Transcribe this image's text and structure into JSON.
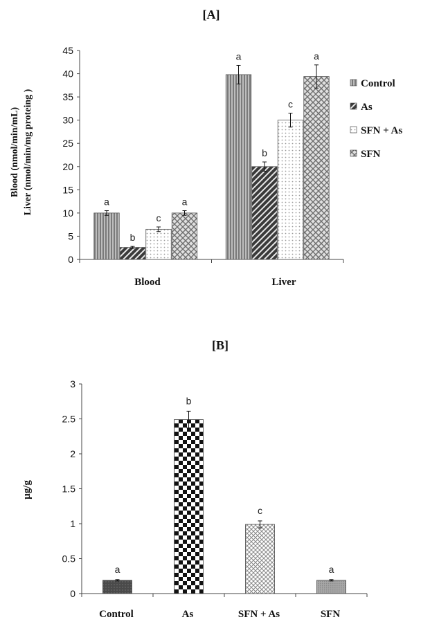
{
  "chart_data": [
    {
      "type": "bar",
      "title": "[A]",
      "ylabel_lines": [
        "Blood (nmol/min/mL)",
        "Liver (nmol/min/mg proteing )"
      ],
      "ylim": [
        0,
        45
      ],
      "yticks": [
        0,
        5,
        10,
        15,
        20,
        25,
        30,
        35,
        40,
        45
      ],
      "categories": [
        "Blood",
        "Liver"
      ],
      "legend_position": "right",
      "series": [
        {
          "name": "Control",
          "values": [
            10,
            39.8
          ],
          "errors": [
            0.5,
            2
          ],
          "letters": [
            "a",
            "a"
          ],
          "pattern": "vstripes"
        },
        {
          "name": "As",
          "values": [
            2.6,
            20
          ],
          "errors": [
            0.2,
            1
          ],
          "letters": [
            "b",
            "b"
          ],
          "pattern": "diag"
        },
        {
          "name": "SFN + As",
          "values": [
            6.5,
            30
          ],
          "errors": [
            0.5,
            1.5
          ],
          "letters": [
            "c",
            "c"
          ],
          "pattern": "dots"
        },
        {
          "name": "SFN",
          "values": [
            10,
            39.4
          ],
          "errors": [
            0.5,
            2.5
          ],
          "letters": [
            "a",
            "a"
          ],
          "pattern": "checker"
        }
      ]
    },
    {
      "type": "bar",
      "title": "[B]",
      "ylabel": "µg/g",
      "ylim": [
        0,
        3
      ],
      "yticks": [
        "0",
        "0.5",
        "1",
        "1.5",
        "2",
        "2.5",
        "3"
      ],
      "categories": [
        "Control",
        "As",
        "SFN + As",
        "SFN"
      ],
      "values": [
        0.19,
        2.49,
        0.99,
        0.19
      ],
      "errors": [
        0.01,
        0.12,
        0.05,
        0.01
      ],
      "letters": [
        "a",
        "b",
        "c",
        "a"
      ],
      "patterns": [
        "dark",
        "bigcheck",
        "crosshatch",
        "fine"
      ]
    }
  ]
}
